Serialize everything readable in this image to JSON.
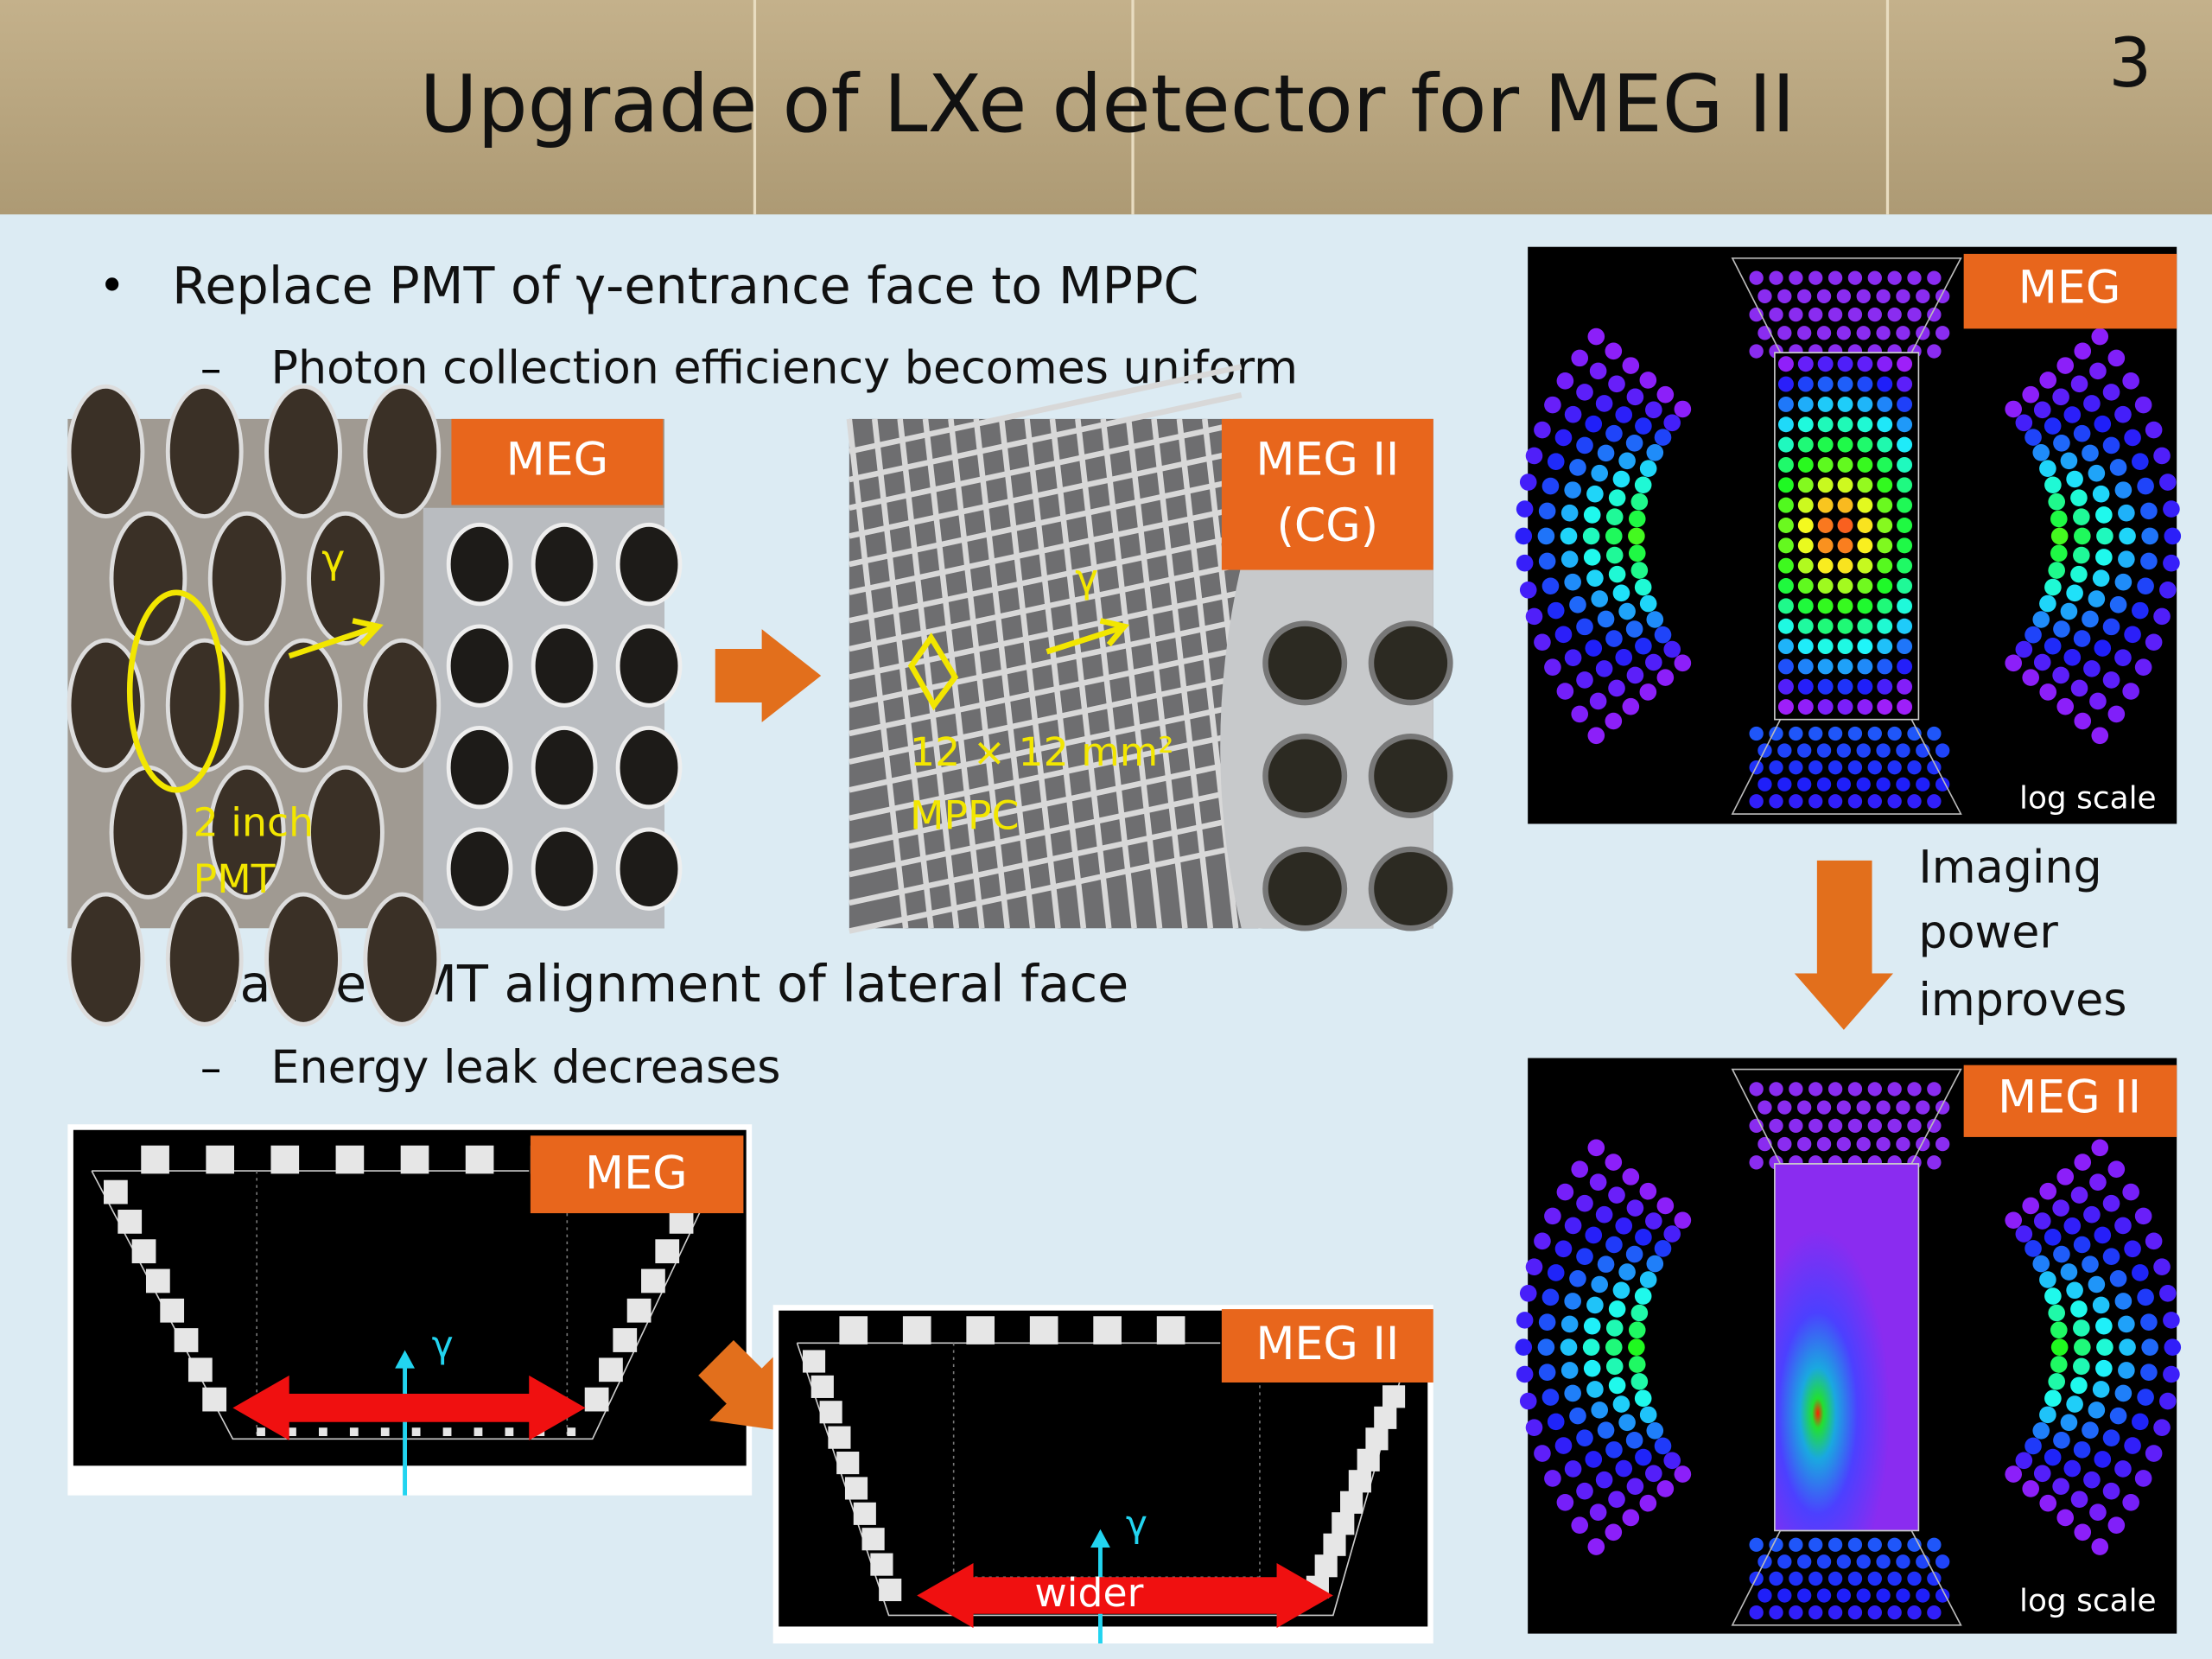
{
  "header": {
    "title": "Upgrade of LXe detector for MEG II",
    "page_number": "3"
  },
  "bullets": [
    {
      "text": "Replace PMT of γ-entrance face to MPPC",
      "sub": "Photon collection efficiency becomes uniform"
    },
    {
      "text": "Change  PMT alignment of lateral face",
      "sub": "Energy leak decreases"
    }
  ],
  "photos": [
    {
      "label": [
        "MEG"
      ],
      "annotations": [
        "γ",
        "2 inch",
        "PMT"
      ]
    },
    {
      "label": [
        "MEG II",
        "(CG)"
      ],
      "annotations": [
        "γ",
        "12 × 12 mm²",
        "MPPC"
      ]
    }
  ],
  "event_displays": [
    {
      "label": "MEG",
      "scale_note": "log scale"
    },
    {
      "label": "MEG II",
      "scale_note": "log scale"
    }
  ],
  "imaging_note": [
    "Imaging",
    "power",
    "improves"
  ],
  "cross_sections": [
    {
      "label": "MEG",
      "annotations": [
        "γ"
      ]
    },
    {
      "label": "MEG II",
      "annotations": [
        "γ",
        "wider"
      ]
    }
  ]
}
